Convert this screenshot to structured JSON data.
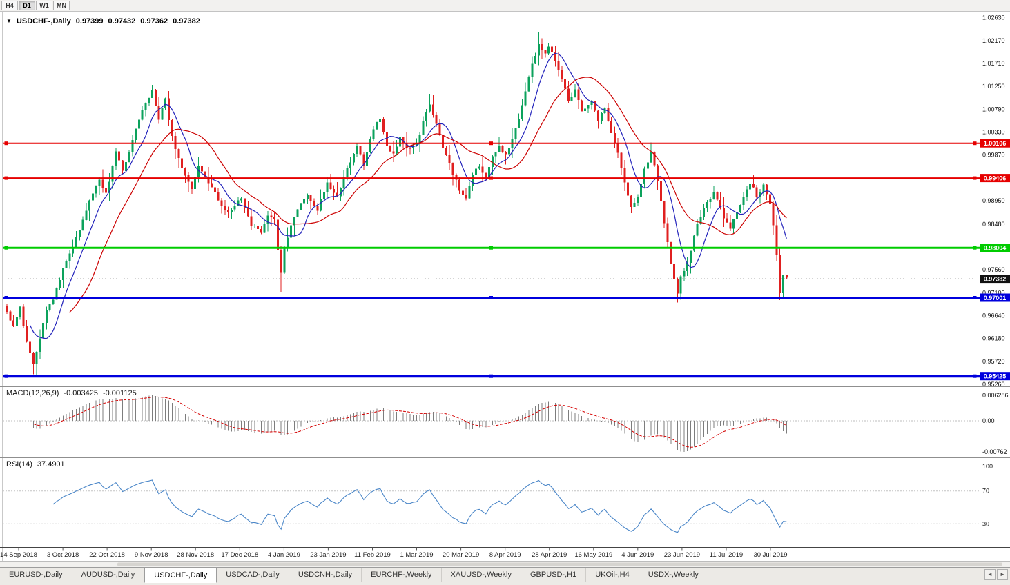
{
  "toolbar": {
    "timeframes": [
      {
        "label": "H4",
        "active": false
      },
      {
        "label": "D1",
        "active": true
      },
      {
        "label": "W1",
        "active": false
      },
      {
        "label": "MN",
        "active": false
      }
    ]
  },
  "chart": {
    "symbol_period": "USDCHF-,Daily",
    "open": "0.97399",
    "high": "0.97432",
    "low": "0.97362",
    "close": "0.97382",
    "collapse_glyph": "▼"
  },
  "price_axis": {
    "ticks": [
      {
        "label": "1.02630",
        "value": 1.0263
      },
      {
        "label": "1.02170",
        "value": 1.0217
      },
      {
        "label": "1.01710",
        "value": 1.0171
      },
      {
        "label": "1.01250",
        "value": 1.0125
      },
      {
        "label": "1.00790",
        "value": 1.0079
      },
      {
        "label": "1.00330",
        "value": 1.0033
      },
      {
        "label": "0.99870",
        "value": 0.9987
      },
      {
        "label": "0.98950",
        "value": 0.9895
      },
      {
        "label": "0.98480",
        "value": 0.9848
      },
      {
        "label": "0.97560",
        "value": 0.9756
      },
      {
        "label": "0.97100",
        "value": 0.971
      },
      {
        "label": "0.96640",
        "value": 0.9664
      },
      {
        "label": "0.96180",
        "value": 0.9618
      },
      {
        "label": "0.95720",
        "value": 0.9572
      },
      {
        "label": "0.95260",
        "value": 0.9526
      }
    ],
    "markers": [
      {
        "label": "1.00106",
        "value": 1.00106,
        "color": "#e60000"
      },
      {
        "label": "0.99406",
        "value": 0.99406,
        "color": "#e60000"
      },
      {
        "label": "0.98004",
        "value": 0.98004,
        "color": "#00cc00"
      },
      {
        "label": "0.97382",
        "value": 0.97382,
        "color": "#111111"
      },
      {
        "label": "0.97001",
        "value": 0.97001,
        "color": "#0000dd"
      },
      {
        "label": "0.95425",
        "value": 0.95425,
        "color": "#0000dd"
      }
    ]
  },
  "indicators": {
    "macd": {
      "label": "MACD(12,26,9)",
      "value_main": "-0.003425",
      "value_signal": "-0.001125",
      "axis": [
        {
          "label": "0.006286",
          "value": 0.006286
        },
        {
          "label": "0.00",
          "value": 0
        },
        {
          "label": "-0.00762",
          "value": -0.00762
        }
      ],
      "histogram_color": "#7d7d7d",
      "signal_color": "#d40000"
    },
    "rsi": {
      "label": "RSI(14)",
      "value": "37.4901",
      "axis": [
        {
          "label": "100",
          "value": 100
        },
        {
          "label": "70",
          "value": 70
        },
        {
          "label": "30",
          "value": 30
        }
      ],
      "levels": [
        70,
        30
      ],
      "line_color": "#4a86c8"
    }
  },
  "date_axis": [
    "14 Sep 2018",
    "3 Oct 2018",
    "22 Oct 2018",
    "9 Nov 2018",
    "28 Nov 2018",
    "17 Dec 2018",
    "4 Jan 2019",
    "23 Jan 2019",
    "11 Feb 2019",
    "1 Mar 2019",
    "20 Mar 2019",
    "8 Apr 2019",
    "28 Apr 2019",
    "16 May 2019",
    "4 Jun 2019",
    "23 Jun 2019",
    "11 Jul 2019",
    "30 Jul 2019"
  ],
  "tabs": [
    {
      "label": "EURUSD-,Daily",
      "active": false
    },
    {
      "label": "AUDUSD-,Daily",
      "active": false
    },
    {
      "label": "USDCHF-,Daily",
      "active": true
    },
    {
      "label": "USDCAD-,Daily",
      "active": false
    },
    {
      "label": "USDCNH-,Daily",
      "active": false
    },
    {
      "label": "EURCHF-,Weekly",
      "active": false
    },
    {
      "label": "XAUUSD-,Weekly",
      "active": false
    },
    {
      "label": "GBPUSD-,H1",
      "active": false
    },
    {
      "label": "UKOil-,H4",
      "active": false
    },
    {
      "label": "USDX-,Weekly",
      "active": false
    }
  ],
  "tab_scroll": {
    "left": "◄",
    "right": "►"
  },
  "chart_data": {
    "type": "candlestick",
    "symbol": "USDCHF",
    "timeframe": "Daily",
    "bars": 237,
    "price_range": [
      0.9522,
      1.027
    ],
    "current_price": 0.97382,
    "up_color": "#0ca25c",
    "down_color": "#e02020",
    "ma_fast": {
      "period": 8,
      "color": "#2222bb"
    },
    "ma_slow": {
      "period": 20,
      "color": "#cc0000"
    },
    "hlines": [
      {
        "price": 1.00106,
        "color": "#e60000",
        "width": 2
      },
      {
        "price": 0.99406,
        "color": "#e60000",
        "width": 2
      },
      {
        "price": 0.98004,
        "color": "#00cc00",
        "width": 3
      },
      {
        "price": 0.97001,
        "color": "#0000dd",
        "width": 3
      },
      {
        "price": 0.95425,
        "color": "#0000dd",
        "width": 4
      }
    ],
    "price_anchors": [
      [
        0,
        0.967
      ],
      [
        2,
        0.9645
      ],
      [
        4,
        0.9682
      ],
      [
        6,
        0.961
      ],
      [
        8,
        0.9566
      ],
      [
        10,
        0.962
      ],
      [
        12,
        0.9672
      ],
      [
        14,
        0.97
      ],
      [
        17,
        0.9758
      ],
      [
        20,
        0.98
      ],
      [
        23,
        0.9856
      ],
      [
        26,
        0.991
      ],
      [
        28,
        0.994
      ],
      [
        30,
        0.9908
      ],
      [
        33,
        0.9992
      ],
      [
        35,
        0.9955
      ],
      [
        38,
        1.0015
      ],
      [
        41,
        1.008
      ],
      [
        44,
        1.0118
      ],
      [
        46,
        1.0058
      ],
      [
        48,
        1.0098
      ],
      [
        50,
        1.0022
      ],
      [
        53,
        0.9958
      ],
      [
        56,
        0.9918
      ],
      [
        58,
        0.9962
      ],
      [
        61,
        0.993
      ],
      [
        64,
        0.9898
      ],
      [
        67,
        0.9868
      ],
      [
        69,
        0.9888
      ],
      [
        71,
        0.9896
      ],
      [
        74,
        0.9848
      ],
      [
        77,
        0.983
      ],
      [
        79,
        0.9868
      ],
      [
        81,
        0.9856
      ],
      [
        82,
        0.98
      ],
      [
        83,
        0.9748
      ],
      [
        84,
        0.98
      ],
      [
        86,
        0.9842
      ],
      [
        88,
        0.9878
      ],
      [
        91,
        0.9906
      ],
      [
        94,
        0.9878
      ],
      [
        97,
        0.993
      ],
      [
        100,
        0.9902
      ],
      [
        103,
        0.9958
      ],
      [
        106,
        1.0002
      ],
      [
        108,
        0.9968
      ],
      [
        111,
        1.004
      ],
      [
        113,
        1.0062
      ],
      [
        115,
        1.0008
      ],
      [
        117,
        0.9986
      ],
      [
        119,
        1.0022
      ],
      [
        121,
        0.9998
      ],
      [
        124,
        1.0006
      ],
      [
        126,
        1.0058
      ],
      [
        128,
        1.0092
      ],
      [
        130,
        1.0048
      ],
      [
        132,
        1.0004
      ],
      [
        134,
        0.9968
      ],
      [
        137,
        0.9918
      ],
      [
        139,
        0.9902
      ],
      [
        141,
        0.9946
      ],
      [
        143,
        0.9966
      ],
      [
        145,
        0.9938
      ],
      [
        147,
        0.9986
      ],
      [
        149,
        1.0002
      ],
      [
        151,
        0.9988
      ],
      [
        153,
        1.0022
      ],
      [
        155,
        1.0062
      ],
      [
        157,
        1.0112
      ],
      [
        159,
        1.0168
      ],
      [
        161,
        1.0212
      ],
      [
        163,
        1.0188
      ],
      [
        164,
        1.0206
      ],
      [
        166,
        1.0178
      ],
      [
        168,
        1.0138
      ],
      [
        170,
        1.0096
      ],
      [
        172,
        1.012
      ],
      [
        174,
        1.0078
      ],
      [
        177,
        1.0096
      ],
      [
        179,
        1.0058
      ],
      [
        181,
        1.0086
      ],
      [
        183,
        1.0028
      ],
      [
        185,
        0.9988
      ],
      [
        187,
        0.9928
      ],
      [
        189,
        0.9884
      ],
      [
        191,
        0.9902
      ],
      [
        193,
        0.9956
      ],
      [
        195,
        0.9996
      ],
      [
        197,
        0.9932
      ],
      [
        199,
        0.9848
      ],
      [
        201,
        0.9768
      ],
      [
        203,
        0.9712
      ],
      [
        204,
        0.9742
      ],
      [
        206,
        0.9772
      ],
      [
        208,
        0.9822
      ],
      [
        210,
        0.9866
      ],
      [
        212,
        0.9892
      ],
      [
        214,
        0.9912
      ],
      [
        216,
        0.988
      ],
      [
        217,
        0.9856
      ],
      [
        219,
        0.984
      ],
      [
        221,
        0.9872
      ],
      [
        223,
        0.9902
      ],
      [
        225,
        0.9932
      ],
      [
        227,
        0.9906
      ],
      [
        229,
        0.9926
      ],
      [
        231,
        0.9888
      ],
      [
        232,
        0.9848
      ],
      [
        233,
        0.9786
      ],
      [
        234,
        0.9712
      ],
      [
        235,
        0.9742
      ],
      [
        236,
        0.9738
      ]
    ],
    "wick_events": [
      {
        "i": 8,
        "low": 0.9546
      },
      {
        "i": 44,
        "high": 1.0128
      },
      {
        "i": 83,
        "low": 0.9712
      },
      {
        "i": 128,
        "high": 1.011
      },
      {
        "i": 161,
        "high": 1.0235
      },
      {
        "i": 195,
        "high": 1.0012
      },
      {
        "i": 203,
        "low": 0.9693
      },
      {
        "i": 234,
        "low": 0.9695
      }
    ]
  }
}
